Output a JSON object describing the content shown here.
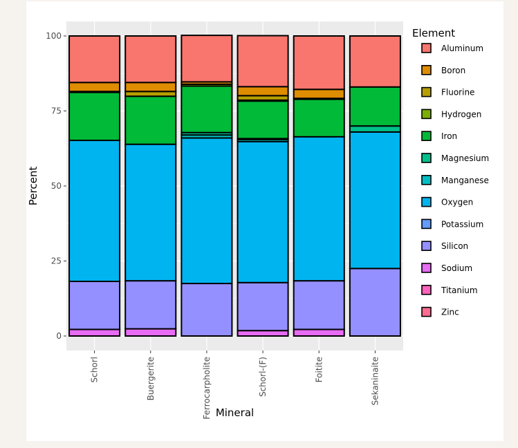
{
  "chart_data": {
    "type": "bar",
    "stacked": true,
    "xlabel": "Mineral",
    "ylabel": "Percent",
    "ylim": [
      0,
      100
    ],
    "yticks": [
      0,
      25,
      50,
      75,
      100
    ],
    "grid": true,
    "legend_title": "Element",
    "legend_position": "right",
    "categories": [
      "Schorl",
      "Buergerite",
      "Ferrocarpholite",
      "Schorl-(F)",
      "Foitite",
      "Sekaninaite"
    ],
    "series": [
      {
        "name": "Aluminum",
        "color": "#F8766D",
        "values": [
          15.5,
          15.5,
          15.5,
          17.0,
          17.8,
          17.0
        ]
      },
      {
        "name": "Boron",
        "color": "#DE8C00",
        "values": [
          3.0,
          3.0,
          0.8,
          3.0,
          3.0,
          0.0
        ]
      },
      {
        "name": "Fluorine",
        "color": "#B79F00",
        "values": [
          0.0,
          1.6,
          0.0,
          1.5,
          0.0,
          0.0
        ]
      },
      {
        "name": "Hydrogen",
        "color": "#7CAE00",
        "values": [
          0.3,
          0.0,
          0.6,
          0.3,
          0.3,
          0.0
        ]
      },
      {
        "name": "Iron",
        "color": "#00BA38",
        "values": [
          16.0,
          16.0,
          15.5,
          12.5,
          12.5,
          13.0
        ]
      },
      {
        "name": "Magnesium",
        "color": "#00C08B",
        "values": [
          0.0,
          0.0,
          0.8,
          0.3,
          0.0,
          2.0
        ]
      },
      {
        "name": "Manganese",
        "color": "#00BFC4",
        "values": [
          0.0,
          0.0,
          1.0,
          0.7,
          0.0,
          0.0
        ]
      },
      {
        "name": "Oxygen",
        "color": "#00B4F0",
        "values": [
          47.0,
          45.5,
          48.5,
          47.0,
          48.0,
          45.5
        ]
      },
      {
        "name": "Potassium",
        "color": "#619CFF",
        "values": [
          0.0,
          0.0,
          0.0,
          0.0,
          0.0,
          0.0
        ]
      },
      {
        "name": "Silicon",
        "color": "#9590FF",
        "values": [
          16.0,
          16.0,
          17.5,
          16.0,
          16.2,
          22.5
        ]
      },
      {
        "name": "Sodium",
        "color": "#E76BF3",
        "values": [
          2.2,
          2.4,
          0.0,
          1.8,
          2.2,
          0.0
        ]
      },
      {
        "name": "Titanium",
        "color": "#FF62BC",
        "values": [
          0.0,
          0.0,
          0.0,
          0.0,
          0.0,
          0.0
        ]
      },
      {
        "name": "Zinc",
        "color": "#FF6C91",
        "values": [
          0.0,
          0.0,
          0.0,
          0.0,
          0.0,
          0.0
        ]
      }
    ]
  }
}
